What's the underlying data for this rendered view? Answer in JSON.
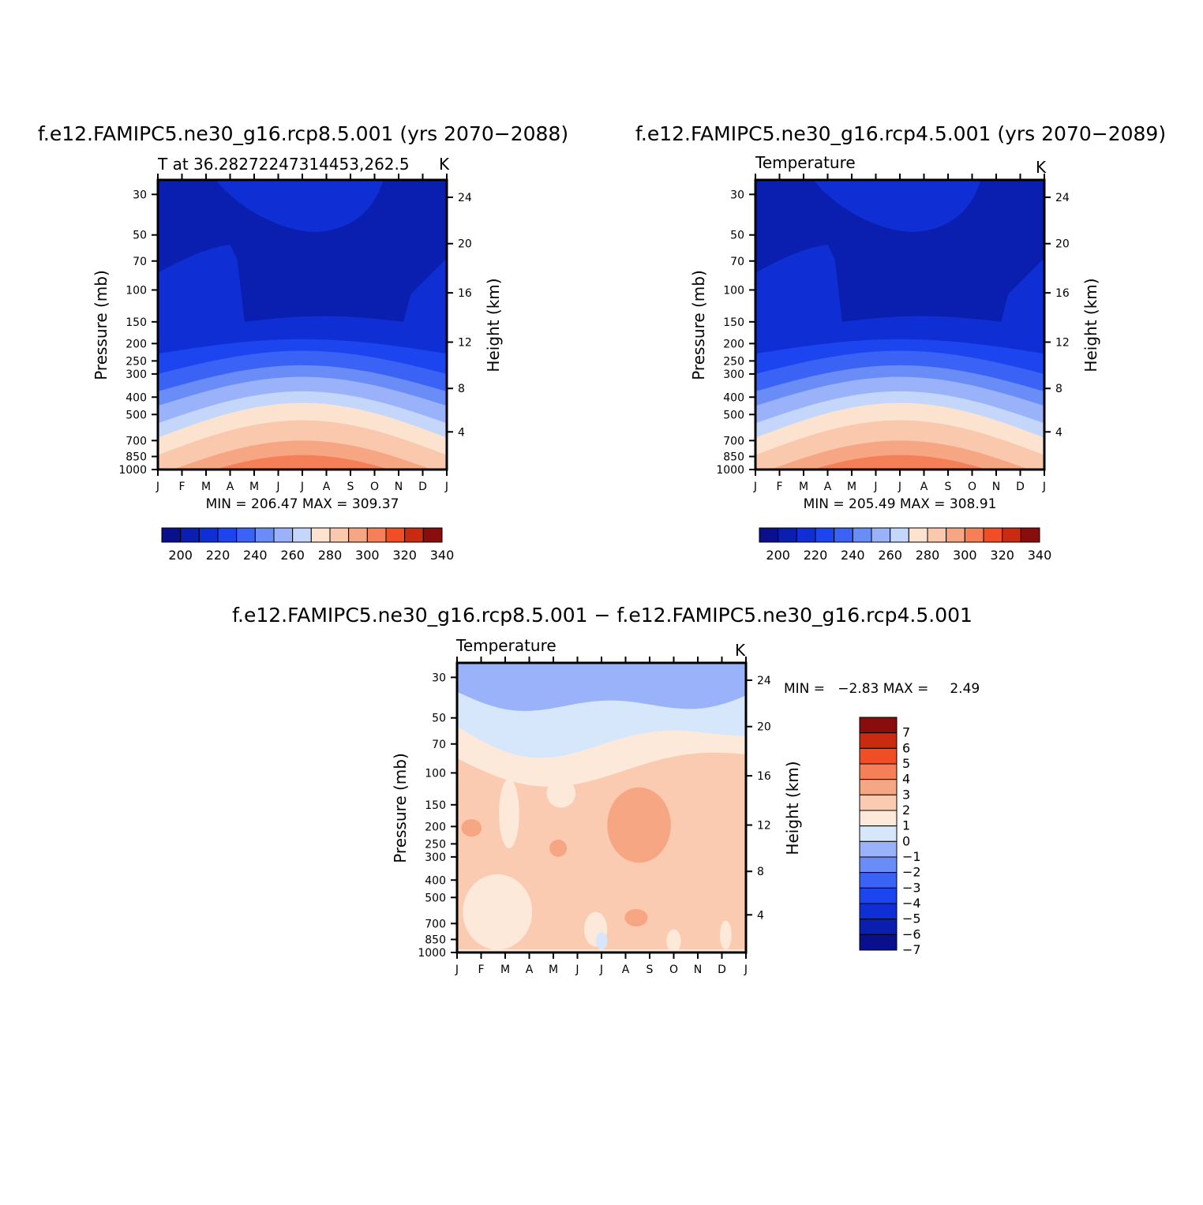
{
  "palette": {
    "temperature_levels": [
      "#0a0f8c",
      "#0a1fb0",
      "#0f2fd4",
      "#1c45f0",
      "#3a63f5",
      "#6a8cf7",
      "#9ab2f9",
      "#c5d6fb",
      "#fbe3cf",
      "#f9c8ad",
      "#f7a683",
      "#f57f57",
      "#f04e24",
      "#c82b10",
      "#8a0d0d"
    ],
    "diff_levels": [
      "#0a0f8c",
      "#0a1fb0",
      "#0f2fd4",
      "#1c45f0",
      "#3a63f5",
      "#6a8cf7",
      "#9ab2f9",
      "#d6e7fc",
      "#fde9d9",
      "#fbcbb1",
      "#f7a683",
      "#f57f57",
      "#f04e24",
      "#c82b10",
      "#8a0d0d"
    ]
  },
  "chart_data": [
    {
      "id": "panel1",
      "type": "heatmap",
      "title": "f.e12.FAMIPC5.ne30_g16.rcp8.5.001 (yrs 2070−2088)",
      "subtitle_left": "T at 36.28272247314453,262.5",
      "subtitle_right": "K",
      "ylabel": "Pressure (mb)",
      "ylabel_right": "Height (km)",
      "months": [
        "J",
        "F",
        "M",
        "A",
        "M",
        "J",
        "J",
        "A",
        "S",
        "O",
        "N",
        "D",
        "J"
      ],
      "pressure_ticks": [
        "30",
        "50",
        "70",
        "100",
        "150",
        "200",
        "250",
        "300",
        "400",
        "500",
        "700",
        "850",
        "1000"
      ],
      "height_ticks": [
        "24",
        "20",
        "16",
        "12",
        "8",
        "4"
      ],
      "stats": "MIN = 206.47 MAX = 309.37",
      "min": 206.47,
      "max": 309.37,
      "colorbar_labels": [
        "200",
        "220",
        "240",
        "260",
        "280",
        "300",
        "320",
        "340"
      ]
    },
    {
      "id": "panel2",
      "type": "heatmap",
      "title": "f.e12.FAMIPC5.ne30_g16.rcp4.5.001 (yrs 2070−2089)",
      "subtitle_left": "Temperature",
      "subtitle_right": "K",
      "ylabel": "Pressure (mb)",
      "ylabel_right": "Height (km)",
      "months": [
        "J",
        "F",
        "M",
        "A",
        "M",
        "J",
        "J",
        "A",
        "S",
        "O",
        "N",
        "D",
        "J"
      ],
      "pressure_ticks": [
        "30",
        "50",
        "70",
        "100",
        "150",
        "200",
        "250",
        "300",
        "400",
        "500",
        "700",
        "850",
        "1000"
      ],
      "height_ticks": [
        "24",
        "20",
        "16",
        "12",
        "8",
        "4"
      ],
      "stats": "MIN = 205.49 MAX = 308.91",
      "min": 205.49,
      "max": 308.91,
      "colorbar_labels": [
        "200",
        "220",
        "240",
        "260",
        "280",
        "300",
        "320",
        "340"
      ]
    },
    {
      "id": "panel3",
      "type": "heatmap",
      "title": "f.e12.FAMIPC5.ne30_g16.rcp8.5.001 − f.e12.FAMIPC5.ne30_g16.rcp4.5.001",
      "subtitle_left": "Temperature",
      "subtitle_right": "K",
      "ylabel": "Pressure (mb)",
      "ylabel_right": "Height (km)",
      "months": [
        "J",
        "F",
        "M",
        "A",
        "M",
        "J",
        "J",
        "A",
        "S",
        "O",
        "N",
        "D",
        "J"
      ],
      "pressure_ticks": [
        "30",
        "50",
        "70",
        "100",
        "150",
        "200",
        "250",
        "300",
        "400",
        "500",
        "700",
        "850",
        "1000"
      ],
      "height_ticks": [
        "24",
        "20",
        "16",
        "12",
        "8",
        "4"
      ],
      "stats": "MIN =   −2.83 MAX =     2.49",
      "min": -2.83,
      "max": 2.49,
      "colorbar_labels": [
        "7",
        "6",
        "5",
        "4",
        "3",
        "2",
        "1",
        "0",
        "−1",
        "−2",
        "−3",
        "−4",
        "−5",
        "−6",
        "−7"
      ]
    }
  ]
}
